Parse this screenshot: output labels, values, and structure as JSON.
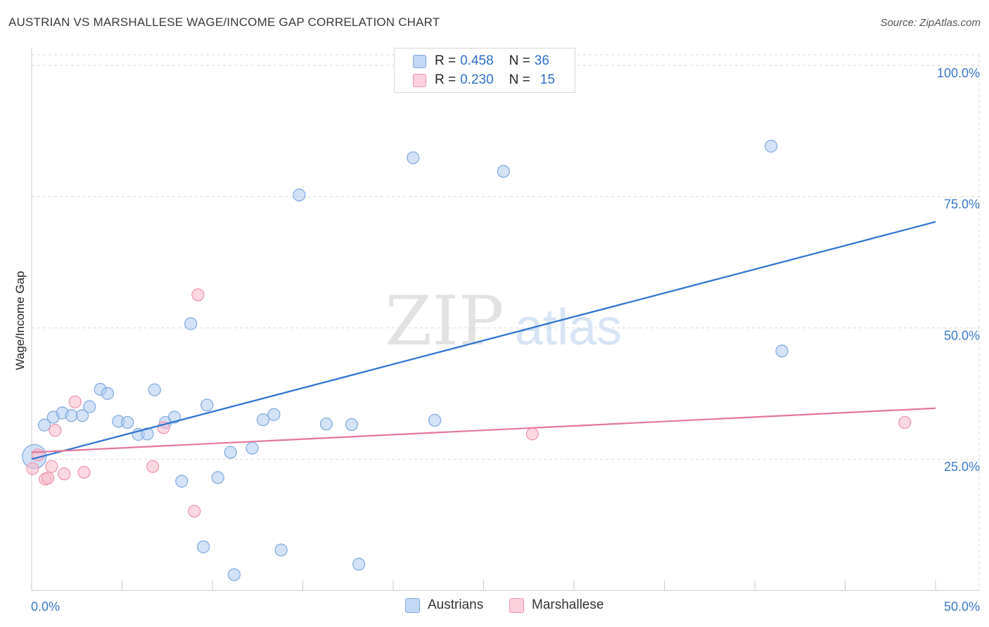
{
  "title": "AUSTRIAN VS MARSHALLESE WAGE/INCOME GAP CORRELATION CHART",
  "source": "Source: ZipAtlas.com",
  "watermark": {
    "zip": "ZIP",
    "atlas": "atlas"
  },
  "legend": {
    "rows": [
      {
        "r_label": "R = ",
        "r_value": "0.458",
        "n_label": "N = ",
        "n_value": "36"
      },
      {
        "r_label": "R = ",
        "r_value": "0.230",
        "n_label": "N = ",
        "n_value": "15"
      }
    ]
  },
  "colors": {
    "blue_fill": "#aecbf0",
    "blue_stroke": "#7ea9de",
    "blue_line": "#2f74d0",
    "pink_fill": "#f7b9cb",
    "pink_stroke": "#ee93ae",
    "pink_line": "#e5769b",
    "axis_text": "#3a78c9",
    "grid": "#d9d9d9"
  },
  "chart_data": {
    "type": "scatter",
    "title": "AUSTRIAN VS MARSHALLESE WAGE/INCOME GAP CORRELATION CHART",
    "xlabel": "",
    "ylabel": "Wage/Income Gap",
    "xlim": [
      0,
      50
    ],
    "ylim": [
      0,
      102
    ],
    "x_tick_labels": [
      "0.0%",
      "50.0%"
    ],
    "y_ticks": [
      25,
      50,
      75,
      100
    ],
    "y_tick_labels": [
      "25.0%",
      "50.0%",
      "75.0%",
      "100.0%"
    ],
    "legend_position": "top-center",
    "series": [
      {
        "name": "Austrians",
        "points": [
          {
            "x": 0.15,
            "y": 25.5,
            "size": "large"
          },
          {
            "x": 0.7,
            "y": 31.5
          },
          {
            "x": 1.2,
            "y": 33
          },
          {
            "x": 1.7,
            "y": 33.8
          },
          {
            "x": 2.2,
            "y": 33.3
          },
          {
            "x": 2.8,
            "y": 33.3
          },
          {
            "x": 3.2,
            "y": 35
          },
          {
            "x": 3.8,
            "y": 38.3
          },
          {
            "x": 4.2,
            "y": 37.5
          },
          {
            "x": 4.8,
            "y": 32.2
          },
          {
            "x": 5.3,
            "y": 32
          },
          {
            "x": 5.9,
            "y": 29.7
          },
          {
            "x": 6.4,
            "y": 29.8
          },
          {
            "x": 6.8,
            "y": 38.2
          },
          {
            "x": 7.4,
            "y": 32
          },
          {
            "x": 7.9,
            "y": 33
          },
          {
            "x": 8.3,
            "y": 20.8
          },
          {
            "x": 8.8,
            "y": 50.8
          },
          {
            "x": 9.5,
            "y": 8.3
          },
          {
            "x": 9.7,
            "y": 35.3
          },
          {
            "x": 10.3,
            "y": 21.5
          },
          {
            "x": 11,
            "y": 26.3
          },
          {
            "x": 11.2,
            "y": 3
          },
          {
            "x": 12.2,
            "y": 27.1
          },
          {
            "x": 12.8,
            "y": 32.5
          },
          {
            "x": 13.4,
            "y": 33.5
          },
          {
            "x": 13.8,
            "y": 7.7
          },
          {
            "x": 14.8,
            "y": 75.3
          },
          {
            "x": 16.3,
            "y": 31.7
          },
          {
            "x": 17.7,
            "y": 31.6
          },
          {
            "x": 18.1,
            "y": 5
          },
          {
            "x": 21.1,
            "y": 82.4
          },
          {
            "x": 22.3,
            "y": 32.4
          },
          {
            "x": 26.1,
            "y": 79.8
          },
          {
            "x": 40.9,
            "y": 84.6
          },
          {
            "x": 41.5,
            "y": 45.6
          }
        ],
        "trendline": {
          "x": [
            0,
            50
          ],
          "y": [
            25,
            70.2
          ]
        }
      },
      {
        "name": "Marshallese",
        "points": [
          {
            "x": 0.05,
            "y": 23.2
          },
          {
            "x": 0.35,
            "y": 25.8
          },
          {
            "x": 0.75,
            "y": 21.2
          },
          {
            "x": 0.9,
            "y": 21.4
          },
          {
            "x": 1.1,
            "y": 23.6
          },
          {
            "x": 1.3,
            "y": 30.5
          },
          {
            "x": 1.8,
            "y": 22.2
          },
          {
            "x": 2.4,
            "y": 35.9
          },
          {
            "x": 2.9,
            "y": 22.5
          },
          {
            "x": 6.7,
            "y": 23.6
          },
          {
            "x": 7.3,
            "y": 31
          },
          {
            "x": 9.0,
            "y": 15.1
          },
          {
            "x": 9.2,
            "y": 56.3
          },
          {
            "x": 27.7,
            "y": 29.8
          },
          {
            "x": 48.3,
            "y": 32
          }
        ],
        "trendline": {
          "x": [
            0,
            50
          ],
          "y": [
            26.3,
            34.7
          ]
        }
      }
    ]
  }
}
